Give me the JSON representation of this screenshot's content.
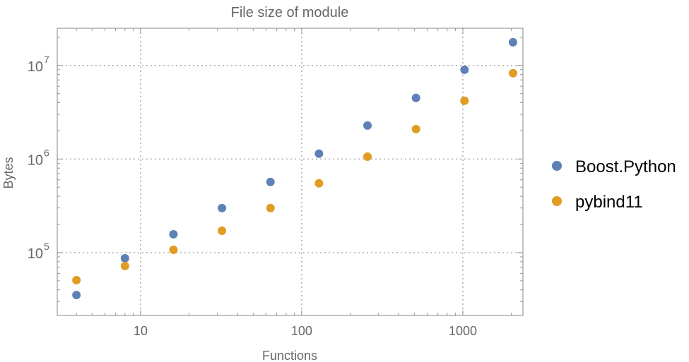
{
  "chart_data": {
    "type": "scatter",
    "title": "File size of module",
    "xlabel": "Functions",
    "ylabel": "Bytes",
    "xscale": "log",
    "yscale": "log",
    "xlim": [
      3.04,
      2360
    ],
    "ylim": [
      21300,
      25000000
    ],
    "grid": true,
    "legend_position": "right",
    "x_ticks": [
      {
        "value": 10,
        "label": "10"
      },
      {
        "value": 100,
        "label": "100"
      },
      {
        "value": 1000,
        "label": "1000"
      }
    ],
    "y_ticks": [
      {
        "value": 100000,
        "base": "10",
        "exp": "5"
      },
      {
        "value": 1000000,
        "base": "10",
        "exp": "6"
      },
      {
        "value": 10000000,
        "base": "10",
        "exp": "7"
      }
    ],
    "x": [
      4,
      8,
      16,
      32,
      64,
      128,
      256,
      512,
      1024,
      2048
    ],
    "series": [
      {
        "name": "Boost.Python",
        "color": "#5E81B5",
        "values": [
          35200,
          87000,
          157000,
          299000,
          569000,
          1140000,
          2280000,
          4500000,
          9000000,
          17700000
        ]
      },
      {
        "name": "pybind11",
        "color": "#E19C24",
        "values": [
          50800,
          71900,
          107000,
          171000,
          299000,
          550000,
          1060000,
          2090000,
          4200000,
          8260000
        ]
      }
    ]
  }
}
